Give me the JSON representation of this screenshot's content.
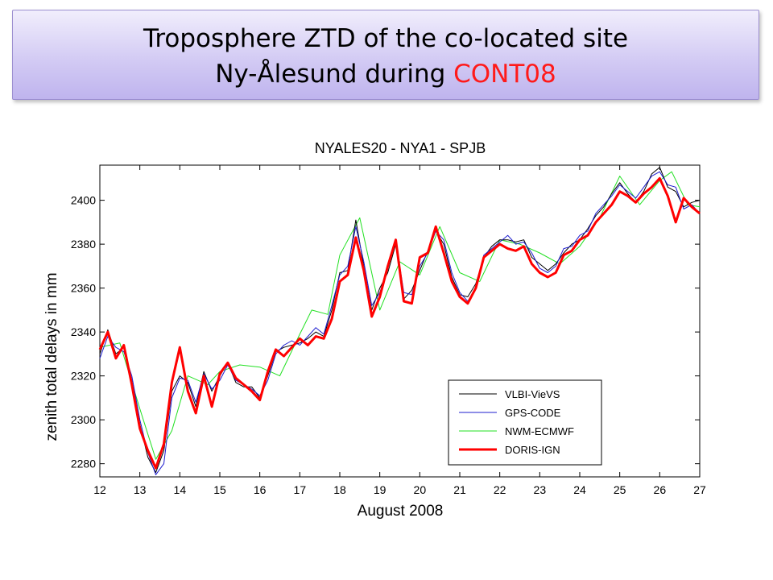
{
  "slide": {
    "title_line1": "Troposphere ZTD of the co-located site",
    "title_line2_prefix": "Ny-Ålesund during ",
    "title_line2_accent": "CONT08",
    "accent_color": "#ff1a1a"
  },
  "chart_data": {
    "type": "line",
    "title": "NYALES20 - NYA1 - SPJB",
    "xlabel": "August 2008",
    "ylabel": "zenith total delays in mm",
    "xlim": [
      12,
      27
    ],
    "ylim": [
      2274,
      2416
    ],
    "xticks": [
      12,
      13,
      14,
      15,
      16,
      17,
      18,
      19,
      20,
      21,
      22,
      23,
      24,
      25,
      26,
      27
    ],
    "yticks": [
      2280,
      2300,
      2320,
      2340,
      2360,
      2380,
      2400
    ],
    "grid": false,
    "legend_position": "lower-right",
    "series": [
      {
        "name": "VLBI-VieVS",
        "color": "#000000",
        "x": [
          12.0,
          12.2,
          12.4,
          12.6,
          12.8,
          13.0,
          13.2,
          13.4,
          13.6,
          13.8,
          14.0,
          14.2,
          14.4,
          14.6,
          14.8,
          15.0,
          15.2,
          15.4,
          15.6,
          15.8,
          16.0,
          16.2,
          16.4,
          16.6,
          16.8,
          17.0,
          17.2,
          17.4,
          17.6,
          17.8,
          18.0,
          18.2,
          18.4,
          18.6,
          18.8,
          19.0,
          19.2,
          19.4,
          19.6,
          19.8,
          20.0,
          20.2,
          20.4,
          20.6,
          20.8,
          21.0,
          21.2,
          21.4,
          21.6,
          21.8,
          22.0,
          22.2,
          22.4,
          22.6,
          22.8,
          23.0,
          23.2,
          23.4,
          23.6,
          23.8,
          24.0,
          24.2,
          24.4,
          24.6,
          24.8,
          25.0,
          25.2,
          25.4,
          25.6,
          25.8,
          26.0,
          26.2,
          26.4,
          26.6,
          26.8,
          27.0
        ],
        "y": [
          2330,
          2341,
          2330,
          2333,
          2318,
          2298,
          2283,
          2276,
          2286,
          2313,
          2320,
          2317,
          2306,
          2322,
          2313,
          2320,
          2326,
          2317,
          2315,
          2315,
          2310,
          2320,
          2331,
          2333,
          2334,
          2335,
          2337,
          2340,
          2338,
          2350,
          2367,
          2368,
          2391,
          2370,
          2350,
          2360,
          2367,
          2380,
          2355,
          2359,
          2368,
          2377,
          2386,
          2380,
          2365,
          2357,
          2356,
          2362,
          2374,
          2379,
          2382,
          2382,
          2381,
          2382,
          2374,
          2371,
          2368,
          2371,
          2376,
          2380,
          2382,
          2387,
          2393,
          2397,
          2403,
          2408,
          2403,
          2399,
          2404,
          2412,
          2415,
          2406,
          2404,
          2397,
          2399,
          2400
        ]
      },
      {
        "name": "GPS-CODE",
        "color": "#1c1ccf",
        "x": [
          12.0,
          12.2,
          12.4,
          12.6,
          12.8,
          13.0,
          13.2,
          13.4,
          13.6,
          13.8,
          14.0,
          14.2,
          14.4,
          14.6,
          14.8,
          15.0,
          15.2,
          15.4,
          15.6,
          15.8,
          16.0,
          16.2,
          16.4,
          16.6,
          16.8,
          17.0,
          17.2,
          17.4,
          17.6,
          17.8,
          18.0,
          18.2,
          18.4,
          18.6,
          18.8,
          19.0,
          19.2,
          19.4,
          19.6,
          19.8,
          20.0,
          20.2,
          20.4,
          20.6,
          20.8,
          21.0,
          21.2,
          21.4,
          21.6,
          21.8,
          22.0,
          22.2,
          22.4,
          22.6,
          22.8,
          23.0,
          23.2,
          23.4,
          23.6,
          23.8,
          24.0,
          24.2,
          24.4,
          24.6,
          24.8,
          25.0,
          25.2,
          25.4,
          25.6,
          25.8,
          26.0,
          26.2,
          26.4,
          26.6,
          26.8,
          27.0
        ],
        "y": [
          2328,
          2338,
          2333,
          2331,
          2320,
          2300,
          2285,
          2275,
          2280,
          2310,
          2319,
          2318,
          2308,
          2321,
          2314,
          2318,
          2325,
          2318,
          2316,
          2314,
          2311,
          2318,
          2330,
          2334,
          2336,
          2334,
          2338,
          2342,
          2339,
          2352,
          2366,
          2370,
          2388,
          2372,
          2352,
          2358,
          2369,
          2382,
          2358,
          2357,
          2370,
          2376,
          2386,
          2382,
          2367,
          2358,
          2354,
          2360,
          2375,
          2378,
          2381,
          2384,
          2380,
          2381,
          2376,
          2369,
          2367,
          2370,
          2378,
          2379,
          2384,
          2386,
          2394,
          2398,
          2402,
          2407,
          2404,
          2401,
          2406,
          2411,
          2413,
          2407,
          2406,
          2396,
          2398,
          2394
        ]
      },
      {
        "name": "NWM-ECMWF",
        "color": "#22e022",
        "x": [
          12.0,
          12.5,
          13.0,
          13.4,
          13.8,
          14.2,
          14.7,
          15.0,
          15.5,
          16.0,
          16.5,
          17.0,
          17.3,
          17.7,
          18.0,
          18.5,
          19.0,
          19.5,
          20.0,
          20.5,
          21.0,
          21.5,
          22.0,
          22.5,
          23.0,
          23.5,
          24.0,
          24.5,
          25.0,
          25.5,
          26.0,
          26.3,
          26.7,
          27.0
        ],
        "y": [
          2333,
          2335,
          2305,
          2282,
          2295,
          2320,
          2316,
          2322,
          2325,
          2324,
          2320,
          2339,
          2350,
          2348,
          2375,
          2392,
          2350,
          2372,
          2366,
          2388,
          2367,
          2363,
          2382,
          2380,
          2376,
          2371,
          2379,
          2392,
          2411,
          2398,
          2409,
          2413,
          2398,
          2397
        ]
      },
      {
        "name": "DORIS-IGN",
        "color": "#ff0000",
        "x": [
          12.0,
          12.2,
          12.4,
          12.6,
          12.8,
          13.0,
          13.2,
          13.4,
          13.6,
          13.8,
          14.0,
          14.2,
          14.4,
          14.6,
          14.8,
          15.0,
          15.2,
          15.4,
          15.6,
          15.8,
          16.0,
          16.2,
          16.4,
          16.6,
          16.8,
          17.0,
          17.2,
          17.4,
          17.6,
          17.8,
          18.0,
          18.2,
          18.4,
          18.6,
          18.8,
          19.0,
          19.2,
          19.4,
          19.6,
          19.8,
          20.0,
          20.2,
          20.4,
          20.6,
          20.8,
          21.0,
          21.2,
          21.4,
          21.6,
          21.8,
          22.0,
          22.2,
          22.4,
          22.6,
          22.8,
          23.0,
          23.2,
          23.4,
          23.6,
          23.8,
          24.0,
          24.2,
          24.4,
          24.6,
          24.8,
          25.0,
          25.2,
          25.4,
          25.6,
          25.8,
          26.0,
          26.2,
          26.4,
          26.6,
          26.8,
          27.0
        ],
        "y": [
          2332,
          2340,
          2328,
          2334,
          2316,
          2296,
          2286,
          2278,
          2289,
          2317,
          2333,
          2313,
          2303,
          2320,
          2306,
          2321,
          2326,
          2319,
          2316,
          2313,
          2309,
          2322,
          2332,
          2329,
          2333,
          2337,
          2334,
          2338,
          2337,
          2346,
          2363,
          2366,
          2383,
          2368,
          2347,
          2356,
          2370,
          2382,
          2354,
          2353,
          2374,
          2376,
          2388,
          2376,
          2363,
          2356,
          2353,
          2360,
          2374,
          2377,
          2380,
          2378,
          2377,
          2379,
          2371,
          2367,
          2365,
          2367,
          2375,
          2377,
          2382,
          2384,
          2390,
          2394,
          2398,
          2404,
          2402,
          2399,
          2403,
          2406,
          2410,
          2402,
          2390,
          2401,
          2397,
          2394
        ]
      }
    ]
  }
}
